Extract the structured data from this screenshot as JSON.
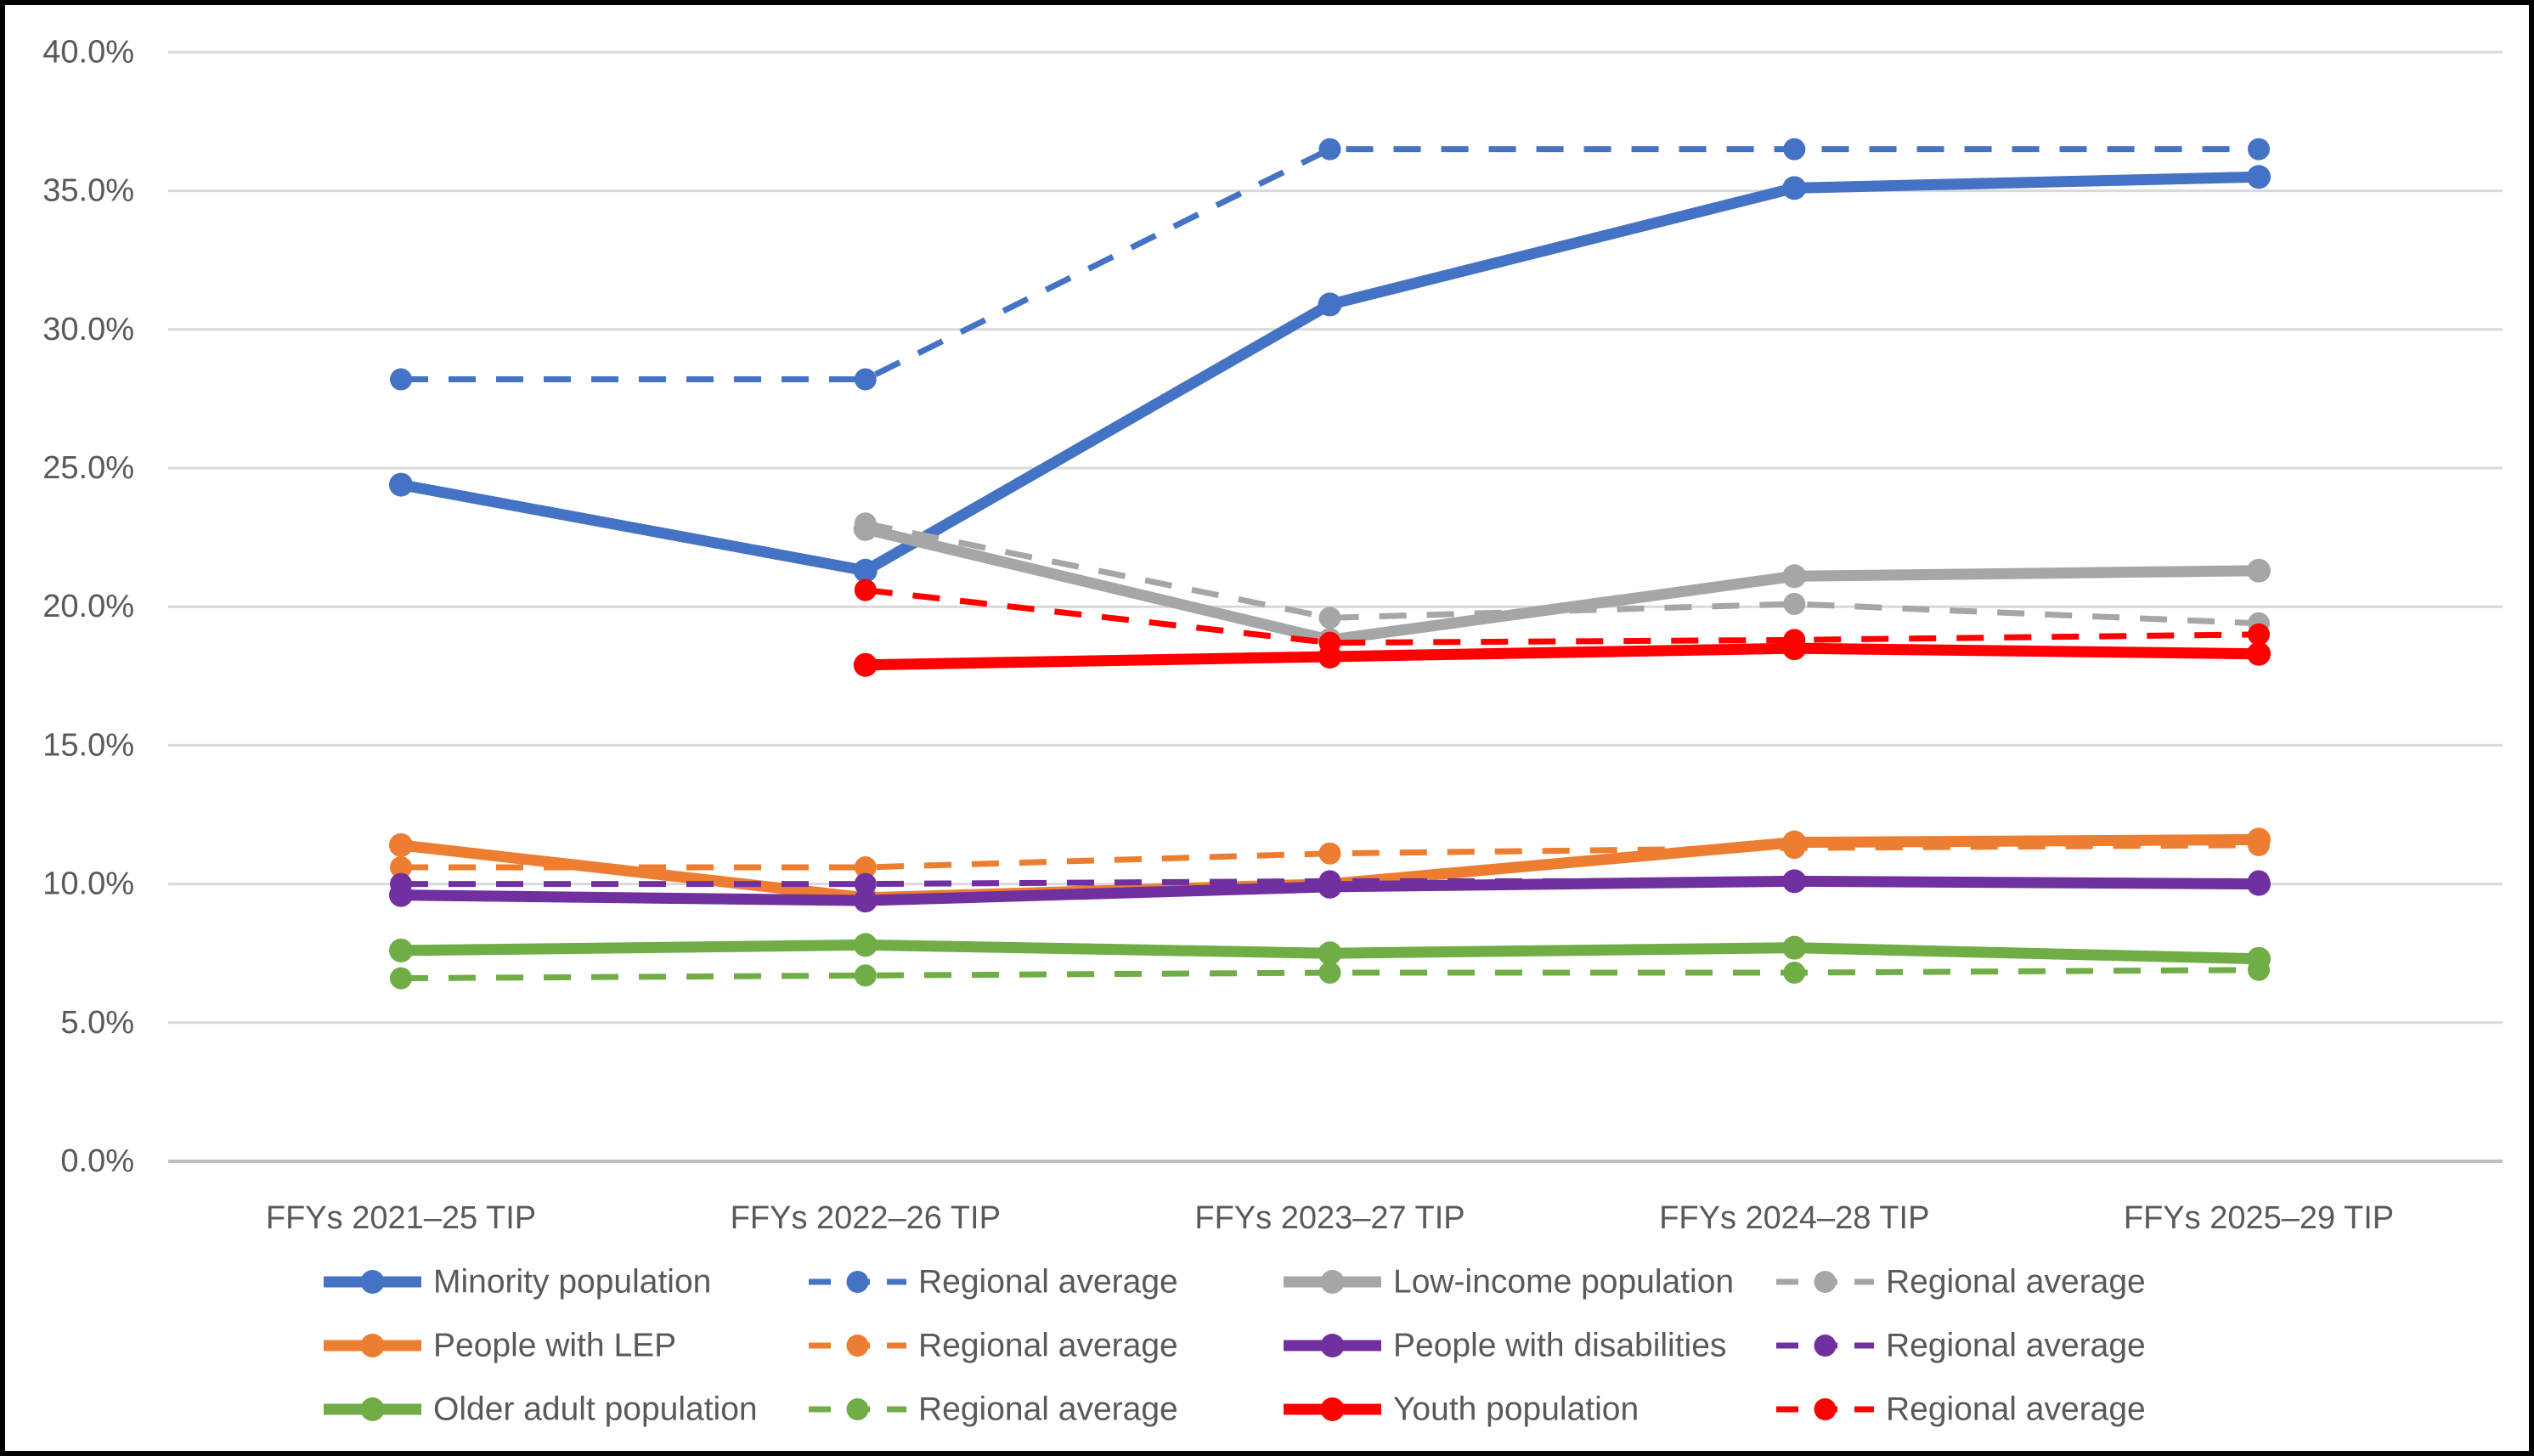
{
  "figure": {
    "background": "#FFFFFF",
    "border_color": "#000000",
    "text_color": "#595959"
  },
  "chart_data": {
    "type": "line",
    "title": "",
    "categories": [
      "FFYs 2021–25 TIP",
      "FFYs 2022–26 TIP",
      "FFYs 2023–27 TIP",
      "FFYs 2024–28 TIP",
      "FFYs 2025–29 TIP"
    ],
    "x_axis": {
      "label_color": "#595959"
    },
    "y_axis": {
      "min": 0,
      "max": 40,
      "step": 5,
      "tick_labels": [
        "0.0%",
        "5.0%",
        "10.0%",
        "15.0%",
        "20.0%",
        "25.0%",
        "30.0%",
        "35.0%",
        "40.0%"
      ],
      "grid": true,
      "grid_color": "#D9D9D9",
      "axis_line_color": "#BFBFBF",
      "label_color": "#595959"
    },
    "series": [
      {
        "name": "Minority population",
        "color": "#4472C4",
        "style": "solid",
        "values": [
          24.4,
          21.3,
          30.9,
          35.1,
          35.5
        ]
      },
      {
        "name": "Regional average",
        "color": "#4472C4",
        "style": "dashed",
        "values": [
          28.2,
          28.2,
          36.5,
          36.5,
          36.5
        ]
      },
      {
        "name": "Low-income population",
        "color": "#A6A6A6",
        "style": "solid",
        "values": [
          null,
          22.8,
          18.8,
          21.1,
          21.3
        ]
      },
      {
        "name": "Regional average",
        "color": "#A6A6A6",
        "style": "dashed",
        "values": [
          null,
          23.0,
          19.6,
          20.1,
          19.4
        ]
      },
      {
        "name": "People with LEP",
        "color": "#ED7D31",
        "style": "solid",
        "values": [
          11.4,
          9.5,
          10.0,
          11.5,
          11.6
        ]
      },
      {
        "name": "Regional average",
        "color": "#ED7D31",
        "style": "dashed",
        "values": [
          10.6,
          10.6,
          11.1,
          11.3,
          11.4
        ]
      },
      {
        "name": "People with disabilities",
        "color": "#7030A0",
        "style": "solid",
        "values": [
          9.6,
          9.4,
          9.9,
          10.1,
          10.0
        ]
      },
      {
        "name": "Regional average",
        "color": "#7030A0",
        "style": "dashed",
        "values": [
          10.0,
          10.0,
          10.1,
          10.1,
          10.1
        ]
      },
      {
        "name": "Older adult population",
        "color": "#70AD47",
        "style": "solid",
        "values": [
          7.6,
          7.8,
          7.5,
          7.7,
          7.3
        ]
      },
      {
        "name": "Regional average",
        "color": "#70AD47",
        "style": "dashed",
        "values": [
          6.6,
          6.7,
          6.8,
          6.8,
          6.9
        ]
      },
      {
        "name": "Youth population",
        "color": "#FF0000",
        "style": "solid",
        "values": [
          null,
          17.9,
          18.2,
          18.5,
          18.3
        ]
      },
      {
        "name": "Regional average",
        "color": "#FF0000",
        "style": "dashed",
        "values": [
          null,
          20.6,
          18.7,
          18.8,
          19.0
        ]
      }
    ],
    "legend": {
      "position": "bottom",
      "rows": 3,
      "columns": 4,
      "text_color": "#595959"
    }
  }
}
